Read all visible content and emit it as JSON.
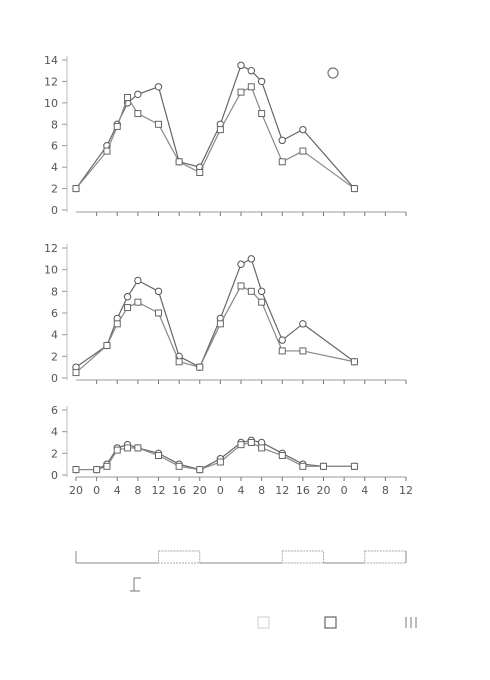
{
  "chart_data": [
    {
      "type": "line",
      "panel": "top",
      "ylim": [
        0,
        14
      ],
      "yticks": [
        0,
        2,
        4,
        6,
        8,
        10,
        12,
        14
      ],
      "ytick_labels": [
        "0",
        "2",
        "4",
        "6",
        "8",
        "10",
        "12",
        "14"
      ],
      "x": [
        -4,
        0,
        2,
        4,
        6,
        8,
        12,
        16,
        20,
        24,
        28,
        30,
        32,
        36,
        40,
        44,
        50
      ],
      "series": [
        {
          "marker": "circle",
          "values": [
            2,
            null,
            6,
            8,
            10,
            10.8,
            11.5,
            4.5,
            4,
            8,
            13.5,
            13,
            12,
            6.5,
            7.5,
            null,
            2
          ]
        },
        {
          "marker": "square",
          "values": [
            2,
            null,
            5.5,
            7.8,
            10.5,
            9,
            8,
            4.5,
            3.5,
            7.5,
            11,
            11.5,
            9,
            4.5,
            5.5,
            null,
            2
          ]
        }
      ]
    },
    {
      "type": "line",
      "panel": "middle",
      "ylim": [
        0,
        12
      ],
      "yticks": [
        0,
        2,
        4,
        6,
        8,
        10,
        12
      ],
      "ytick_labels": [
        "0",
        "2",
        "4",
        "6",
        "8",
        "10",
        "12"
      ],
      "x": [
        -4,
        0,
        2,
        4,
        6,
        8,
        12,
        16,
        20,
        24,
        28,
        30,
        32,
        36,
        40,
        44,
        50
      ],
      "series": [
        {
          "marker": "circle",
          "values": [
            1,
            null,
            3,
            5.5,
            7.5,
            9,
            8,
            2,
            1,
            5.5,
            10.5,
            11,
            8,
            3.5,
            5,
            null,
            1.5
          ]
        },
        {
          "marker": "square",
          "values": [
            0.5,
            null,
            3,
            5,
            6.5,
            7,
            6,
            1.5,
            1,
            5,
            8.5,
            8,
            7,
            2.5,
            2.5,
            null,
            1.5
          ]
        }
      ]
    },
    {
      "type": "line",
      "panel": "bottom",
      "ylim": [
        0,
        6
      ],
      "yticks": [
        0,
        2,
        4,
        6
      ],
      "ytick_labels": [
        "0",
        "2",
        "4",
        "6"
      ],
      "xticks": [
        -4,
        0,
        4,
        8,
        12,
        16,
        20,
        24,
        28,
        32,
        36,
        40,
        44,
        48,
        52,
        56,
        60
      ],
      "xtick_labels": [
        "20",
        "0",
        "4",
        "8",
        "12",
        "16",
        "20",
        "0",
        "4",
        "8",
        "12",
        "16",
        "20",
        "0",
        "4",
        "8",
        "12"
      ],
      "x": [
        -4,
        0,
        2,
        4,
        6,
        8,
        12,
        16,
        20,
        24,
        28,
        30,
        32,
        36,
        40,
        44,
        50
      ],
      "series": [
        {
          "marker": "circle",
          "values": [
            0.5,
            0.5,
            1,
            2.5,
            2.8,
            2.5,
            2,
            1,
            0.5,
            1.5,
            3,
            3.2,
            3,
            2,
            1,
            0.8,
            0.8
          ]
        },
        {
          "marker": "square",
          "values": [
            0.5,
            0.5,
            0.8,
            2.3,
            2.5,
            2.5,
            1.8,
            0.8,
            0.5,
            1.2,
            2.8,
            3,
            2.5,
            1.8,
            0.8,
            0.8,
            0.8
          ]
        }
      ]
    }
  ],
  "photoperiod_bar": {
    "segments": [
      {
        "type": "light",
        "from": -4,
        "to": 12
      },
      {
        "type": "dark",
        "from": 12,
        "to": 20
      },
      {
        "type": "light",
        "from": 20,
        "to": 36
      },
      {
        "type": "dark",
        "from": 36,
        "to": 44
      },
      {
        "type": "light",
        "from": 44,
        "to": 52
      },
      {
        "type": "dark",
        "from": 52,
        "to": 60
      }
    ]
  }
}
